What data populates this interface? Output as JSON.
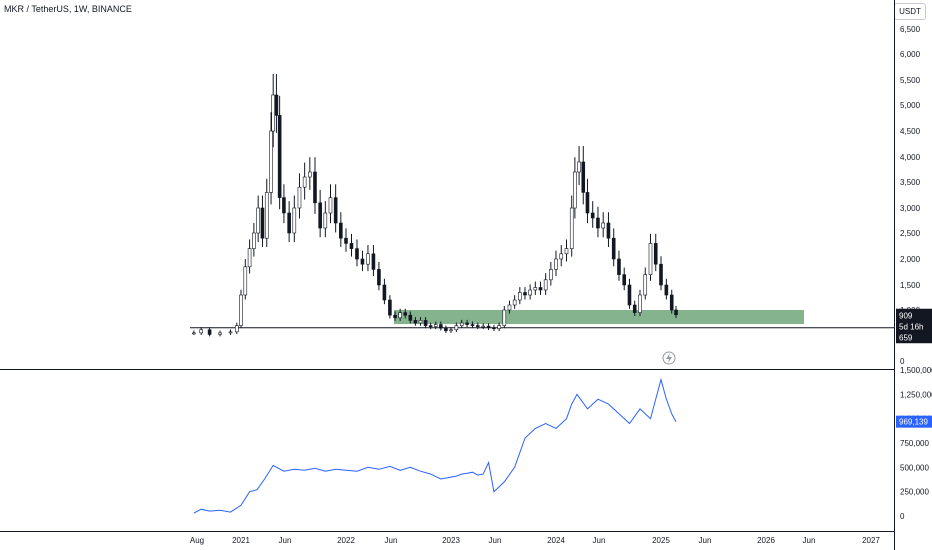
{
  "header": {
    "symbol_line": "MKR / TetherUS, 1W, BINANCE"
  },
  "currency_button": "USDT",
  "price_tags": {
    "price": "909",
    "countdown": "5d 16h",
    "line_level": "659",
    "volume_last": "969,139"
  },
  "colors": {
    "candle": "#131722",
    "zone": "#5b9a68",
    "indicator": "#2962ff",
    "grid": "#e0e3eb"
  },
  "chart_data": [
    {
      "type": "candlestick",
      "ytick_labels": [
        "0",
        "500",
        "1,000",
        "1,500",
        "2,000",
        "2,500",
        "3,000",
        "3,500",
        "4,000",
        "4,500",
        "5,000",
        "5,500",
        "6,000",
        "6,500"
      ],
      "ylim": [
        0,
        6500
      ],
      "xtick_labels": [
        "Aug",
        "2021",
        "Jun",
        "2022",
        "Jun",
        "2023",
        "Jun",
        "2024",
        "Jun",
        "2025",
        "Jun",
        "2026",
        "Jun",
        "2027"
      ],
      "horizontal_line": 659,
      "zone": {
        "low": 730,
        "high": 1000
      },
      "series_close": [
        [
          2020.55,
          560
        ],
        [
          2020.62,
          620
        ],
        [
          2020.7,
          530
        ],
        [
          2020.8,
          560
        ],
        [
          2020.9,
          580
        ],
        [
          2020.96,
          700
        ],
        [
          2021.0,
          1300
        ],
        [
          2021.04,
          1850
        ],
        [
          2021.08,
          2200
        ],
        [
          2021.12,
          2500
        ],
        [
          2021.16,
          3000
        ],
        [
          2021.2,
          2400
        ],
        [
          2021.24,
          3300
        ],
        [
          2021.28,
          4500
        ],
        [
          2021.3,
          5200
        ],
        [
          2021.33,
          4800
        ],
        [
          2021.36,
          3200
        ],
        [
          2021.4,
          2900
        ],
        [
          2021.45,
          2500
        ],
        [
          2021.5,
          3000
        ],
        [
          2021.55,
          3400
        ],
        [
          2021.6,
          3600
        ],
        [
          2021.65,
          3700
        ],
        [
          2021.7,
          3100
        ],
        [
          2021.75,
          2600
        ],
        [
          2021.8,
          2900
        ],
        [
          2021.85,
          3200
        ],
        [
          2021.9,
          2700
        ],
        [
          2021.95,
          2400
        ],
        [
          2022.0,
          2300
        ],
        [
          2022.05,
          2200
        ],
        [
          2022.1,
          2000
        ],
        [
          2022.15,
          1900
        ],
        [
          2022.2,
          2100
        ],
        [
          2022.25,
          1800
        ],
        [
          2022.3,
          1500
        ],
        [
          2022.35,
          1200
        ],
        [
          2022.4,
          900
        ],
        [
          2022.45,
          850
        ],
        [
          2022.5,
          950
        ],
        [
          2022.55,
          900
        ],
        [
          2022.6,
          800
        ],
        [
          2022.65,
          750
        ],
        [
          2022.7,
          800
        ],
        [
          2022.75,
          700
        ],
        [
          2022.8,
          680
        ],
        [
          2022.85,
          720
        ],
        [
          2022.9,
          650
        ],
        [
          2022.95,
          600
        ],
        [
          2023.0,
          620
        ],
        [
          2023.05,
          700
        ],
        [
          2023.1,
          750
        ],
        [
          2023.15,
          720
        ],
        [
          2023.2,
          700
        ],
        [
          2023.25,
          680
        ],
        [
          2023.3,
          690
        ],
        [
          2023.35,
          660
        ],
        [
          2023.4,
          640
        ],
        [
          2023.45,
          700
        ],
        [
          2023.5,
          1000
        ],
        [
          2023.55,
          1100
        ],
        [
          2023.6,
          1200
        ],
        [
          2023.65,
          1350
        ],
        [
          2023.7,
          1300
        ],
        [
          2023.75,
          1400
        ],
        [
          2023.8,
          1450
        ],
        [
          2023.85,
          1400
        ],
        [
          2023.9,
          1600
        ],
        [
          2023.95,
          1800
        ],
        [
          2024.0,
          2000
        ],
        [
          2024.05,
          2100
        ],
        [
          2024.1,
          2200
        ],
        [
          2024.15,
          3000
        ],
        [
          2024.18,
          3700
        ],
        [
          2024.22,
          3900
        ],
        [
          2024.26,
          3300
        ],
        [
          2024.3,
          2900
        ],
        [
          2024.35,
          2800
        ],
        [
          2024.4,
          2600
        ],
        [
          2024.45,
          2700
        ],
        [
          2024.5,
          2400
        ],
        [
          2024.55,
          2000
        ],
        [
          2024.6,
          1700
        ],
        [
          2024.65,
          1500
        ],
        [
          2024.7,
          1100
        ],
        [
          2024.75,
          950
        ],
        [
          2024.8,
          1300
        ],
        [
          2024.85,
          1700
        ],
        [
          2024.9,
          2300
        ],
        [
          2024.95,
          1900
        ],
        [
          2025.0,
          1500
        ],
        [
          2025.05,
          1300
        ],
        [
          2025.1,
          1000
        ],
        [
          2025.14,
          909
        ]
      ]
    },
    {
      "type": "line",
      "ytick_labels": [
        "0",
        "250,000",
        "500,000",
        "750,000",
        "1,000,000",
        "1,250,000",
        "1,500,000"
      ],
      "ylim": [
        0,
        1500000
      ],
      "x": [
        2020.55,
        2020.62,
        2020.7,
        2020.8,
        2020.9,
        2021.0,
        2021.08,
        2021.15,
        2021.22,
        2021.3,
        2021.4,
        2021.5,
        2021.6,
        2021.7,
        2021.8,
        2021.9,
        2022.0,
        2022.1,
        2022.2,
        2022.3,
        2022.4,
        2022.5,
        2022.6,
        2022.7,
        2022.8,
        2022.9,
        2023.0,
        2023.05,
        2023.1,
        2023.15,
        2023.2,
        2023.25,
        2023.3,
        2023.35,
        2023.4,
        2023.45,
        2023.5,
        2023.6,
        2023.7,
        2023.8,
        2023.9,
        2024.0,
        2024.1,
        2024.15,
        2024.2,
        2024.3,
        2024.4,
        2024.5,
        2024.6,
        2024.7,
        2024.8,
        2024.9,
        2024.95,
        2025.0,
        2025.05,
        2025.1,
        2025.14
      ],
      "values": [
        30000,
        70000,
        50000,
        60000,
        40000,
        110000,
        250000,
        270000,
        380000,
        520000,
        460000,
        480000,
        470000,
        490000,
        460000,
        480000,
        470000,
        460000,
        500000,
        480000,
        510000,
        470000,
        500000,
        460000,
        430000,
        380000,
        400000,
        410000,
        430000,
        440000,
        450000,
        420000,
        430000,
        550000,
        250000,
        300000,
        350000,
        500000,
        800000,
        900000,
        950000,
        900000,
        1000000,
        1150000,
        1250000,
        1100000,
        1200000,
        1150000,
        1050000,
        950000,
        1100000,
        1000000,
        1200000,
        1400000,
        1200000,
        1050000,
        969139
      ]
    }
  ]
}
